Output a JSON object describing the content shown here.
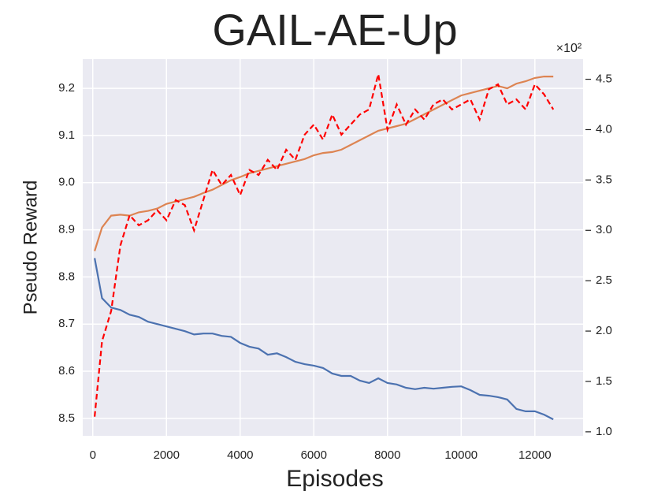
{
  "chart_data": {
    "type": "line",
    "title": "GAIL-AE-Up",
    "xlabel": "Episodes",
    "ylabel": "Pseudo Reward",
    "y2_multiplier": "×10²",
    "x": [
      50,
      250,
      500,
      750,
      1000,
      1250,
      1500,
      1750,
      2000,
      2250,
      2500,
      2750,
      3000,
      3250,
      3500,
      3750,
      4000,
      4250,
      4500,
      4750,
      5000,
      5250,
      5500,
      5750,
      6000,
      6250,
      6500,
      6750,
      7000,
      7250,
      7500,
      7750,
      8000,
      8250,
      8500,
      8750,
      9000,
      9250,
      9500,
      9750,
      10000,
      10250,
      10500,
      10750,
      11000,
      11250,
      11500,
      11750,
      12000,
      12250,
      12500
    ],
    "series": [
      {
        "color": "#4c72b0",
        "axis": "y",
        "linestyle": "solid",
        "values": [
          8.84,
          8.755,
          8.735,
          8.73,
          8.72,
          8.715,
          8.705,
          8.7,
          8.695,
          8.69,
          8.685,
          8.678,
          8.68,
          8.68,
          8.675,
          8.673,
          8.66,
          8.652,
          8.648,
          8.635,
          8.638,
          8.63,
          8.62,
          8.615,
          8.612,
          8.607,
          8.595,
          8.59,
          8.59,
          8.58,
          8.575,
          8.585,
          8.575,
          8.572,
          8.565,
          8.562,
          8.565,
          8.563,
          8.565,
          8.567,
          8.568,
          8.56,
          8.55,
          8.548,
          8.545,
          8.54,
          8.52,
          8.515,
          8.515,
          8.508,
          8.498
        ]
      },
      {
        "color": "#dd8452",
        "axis": "y",
        "linestyle": "solid",
        "values": [
          8.855,
          8.905,
          8.93,
          8.932,
          8.93,
          8.937,
          8.94,
          8.945,
          8.955,
          8.96,
          8.965,
          8.97,
          8.978,
          8.985,
          8.995,
          9.005,
          9.012,
          9.02,
          9.025,
          9.03,
          9.035,
          9.04,
          9.045,
          9.05,
          9.058,
          9.063,
          9.065,
          9.07,
          9.08,
          9.09,
          9.1,
          9.11,
          9.115,
          9.12,
          9.125,
          9.135,
          9.145,
          9.155,
          9.165,
          9.175,
          9.185,
          9.19,
          9.195,
          9.2,
          9.205,
          9.2,
          9.21,
          9.215,
          9.222,
          9.225,
          9.225
        ]
      },
      {
        "color": "#ff0000",
        "axis": "y2",
        "linestyle": "dashed",
        "values": [
          1.15,
          1.9,
          2.2,
          2.85,
          3.15,
          3.05,
          3.1,
          3.2,
          3.1,
          3.3,
          3.25,
          3.0,
          3.3,
          3.6,
          3.45,
          3.55,
          3.35,
          3.6,
          3.55,
          3.7,
          3.6,
          3.8,
          3.7,
          3.95,
          4.05,
          3.9,
          4.15,
          3.95,
          4.05,
          4.15,
          4.2,
          4.55,
          4.0,
          4.25,
          4.05,
          4.2,
          4.1,
          4.25,
          4.3,
          4.2,
          4.25,
          4.3,
          4.1,
          4.4,
          4.45,
          4.25,
          4.3,
          4.2,
          4.45,
          4.35,
          4.2
        ]
      }
    ],
    "xlim": [
      -273,
      13309
    ],
    "xticks": [
      0,
      2000,
      4000,
      6000,
      8000,
      10000,
      12000
    ],
    "ylim": [
      8.463,
      9.262
    ],
    "yticks": [
      8.5,
      8.6,
      8.7,
      8.8,
      8.9,
      {
        "value": 9.0,
        "label": "9.0"
      },
      9.1,
      9.2
    ],
    "y2lim": [
      0.96,
      4.7
    ],
    "y2ticks": [
      {
        "value": 1,
        "label": "1.0"
      },
      1.5,
      {
        "value": 2,
        "label": "2.0"
      },
      2.5,
      {
        "value": 3,
        "label": "3.0"
      },
      3.5,
      {
        "value": 4,
        "label": "4.0"
      },
      4.5
    ],
    "grid": true,
    "background": "#eaeaf2"
  }
}
